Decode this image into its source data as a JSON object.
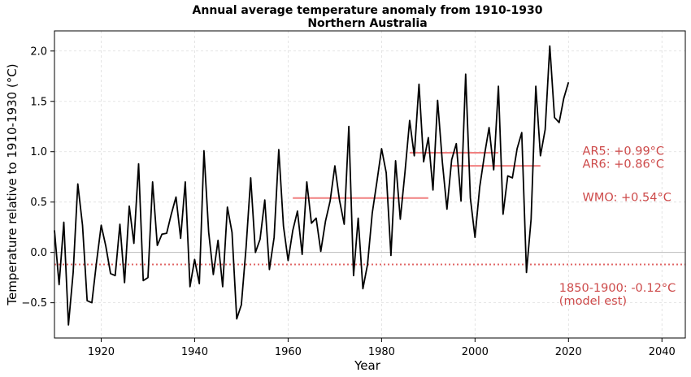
{
  "chart_data": {
    "type": "line",
    "title": "Annual average temperature anomaly from 1910-1930",
    "subtitle": "Northern Australia",
    "xlabel": "Year",
    "ylabel": "Temperature relative to 1910-1930 (°C)",
    "xlim": [
      1910,
      2045
    ],
    "ylim": [
      -0.85,
      2.2
    ],
    "xticks": [
      1920,
      1940,
      1960,
      1980,
      2000,
      2020,
      2040
    ],
    "yticks": [
      -0.5,
      0.0,
      0.5,
      1.0,
      1.5,
      2.0
    ],
    "ytick_labels": [
      "−0.5",
      "0.0",
      "0.5",
      "1.0",
      "1.5",
      "2.0"
    ],
    "grid": true,
    "series": [
      {
        "color": "#000000",
        "x": [
          1910,
          1911,
          1912,
          1913,
          1914,
          1915,
          1916,
          1917,
          1918,
          1919,
          1920,
          1921,
          1922,
          1923,
          1924,
          1925,
          1926,
          1927,
          1928,
          1929,
          1930,
          1931,
          1932,
          1933,
          1934,
          1935,
          1936,
          1937,
          1938,
          1939,
          1940,
          1941,
          1942,
          1943,
          1944,
          1945,
          1946,
          1947,
          1948,
          1949,
          1950,
          1951,
          1952,
          1953,
          1954,
          1955,
          1956,
          1957,
          1958,
          1959,
          1960,
          1961,
          1962,
          1963,
          1964,
          1965,
          1966,
          1967,
          1968,
          1969,
          1970,
          1971,
          1972,
          1973,
          1974,
          1975,
          1976,
          1977,
          1978,
          1979,
          1980,
          1981,
          1982,
          1983,
          1984,
          1985,
          1986,
          1987,
          1988,
          1989,
          1990,
          1991,
          1992,
          1993,
          1994,
          1995,
          1996,
          1997,
          1998,
          1999,
          2000,
          2001,
          2002,
          2003,
          2004,
          2005,
          2006,
          2007,
          2008,
          2009,
          2010,
          2011,
          2012,
          2013,
          2014,
          2015,
          2016,
          2017,
          2018,
          2019,
          2020
        ],
        "y": [
          0.22,
          -0.32,
          0.3,
          -0.72,
          -0.2,
          0.68,
          0.27,
          -0.48,
          -0.5,
          -0.1,
          0.27,
          0.06,
          -0.21,
          -0.23,
          0.28,
          -0.3,
          0.46,
          0.09,
          0.88,
          -0.28,
          -0.25,
          0.7,
          0.07,
          0.18,
          0.19,
          0.38,
          0.55,
          0.14,
          0.7,
          -0.34,
          -0.07,
          -0.31,
          1.01,
          0.2,
          -0.22,
          0.12,
          -0.34,
          0.45,
          0.2,
          -0.66,
          -0.52,
          0.05,
          0.74,
          0.0,
          0.13,
          0.52,
          -0.17,
          0.15,
          1.02,
          0.26,
          -0.08,
          0.22,
          0.41,
          -0.02,
          0.7,
          0.29,
          0.34,
          0.01,
          0.31,
          0.51,
          0.86,
          0.52,
          0.28,
          1.25,
          -0.23,
          0.34,
          -0.36,
          -0.12,
          0.39,
          0.7,
          1.03,
          0.79,
          -0.03,
          0.91,
          0.33,
          0.79,
          1.31,
          0.96,
          1.67,
          0.9,
          1.14,
          0.62,
          1.51,
          0.9,
          0.43,
          0.92,
          1.08,
          0.51,
          1.77,
          0.54,
          0.15,
          0.65,
          0.96,
          1.24,
          0.82,
          1.65,
          0.38,
          0.76,
          0.74,
          1.03,
          1.19,
          -0.2,
          0.33,
          1.65,
          0.96,
          1.22,
          2.05,
          1.34,
          1.29,
          1.53,
          1.69
        ]
      }
    ],
    "reference_lines": [
      {
        "type": "hline",
        "y": 0.0,
        "style": "solid",
        "color": "#bbbbbb"
      },
      {
        "type": "hline",
        "y": -0.12,
        "style": "dotted",
        "color": "#e06666"
      },
      {
        "type": "segment",
        "x": [
          1961,
          1990
        ],
        "y": 0.54,
        "color": "#f08080"
      },
      {
        "type": "segment",
        "x": [
          1986,
          2005
        ],
        "y": 0.99,
        "color": "#f08080"
      },
      {
        "type": "segment",
        "x": [
          1995,
          2014
        ],
        "y": 0.86,
        "color": "#f08080"
      }
    ],
    "annotations": [
      {
        "text": "AR5: +0.99°C",
        "x": 2023,
        "y": 1.01
      },
      {
        "text": "AR6: +0.86°C",
        "x": 2023,
        "y": 0.88
      },
      {
        "text": "WMO: +0.54°C",
        "x": 2023,
        "y": 0.55
      },
      {
        "text": "1850-1900: -0.12°C",
        "x": 2018,
        "y": -0.35
      },
      {
        "text": "(model est)",
        "x": 2018,
        "y": -0.48
      }
    ],
    "annotation_color": "#cd4a4a"
  }
}
